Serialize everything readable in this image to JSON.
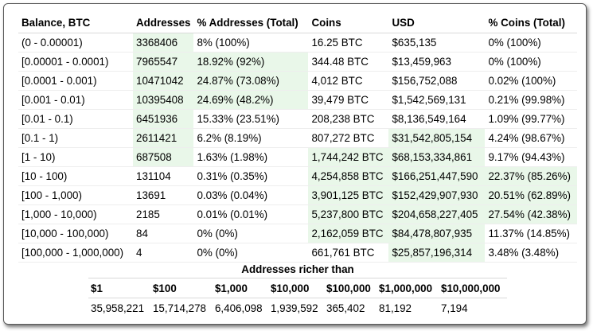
{
  "table": {
    "headers": [
      "Balance, BTC",
      "Addresses",
      "% Addresses (Total)",
      "Coins",
      "USD",
      "% Coins (Total)"
    ],
    "highlight_color": "#e9f7e9",
    "rows": [
      {
        "cells": [
          "(0 - 0.00001)",
          "3368406",
          "8% (100%)",
          "16.25 BTC",
          "$635,135",
          "0% (100%)"
        ],
        "hl": [
          false,
          true,
          false,
          false,
          false,
          false
        ]
      },
      {
        "cells": [
          "[0.00001 - 0.0001)",
          "7965547",
          "18.92% (92%)",
          "344.48 BTC",
          "$13,459,963",
          "0% (100%)"
        ],
        "hl": [
          false,
          true,
          true,
          false,
          false,
          false
        ]
      },
      {
        "cells": [
          "[0.0001 - 0.001)",
          "10471042",
          "24.87% (73.08%)",
          "4,012 BTC",
          "$156,752,088",
          "0.02% (100%)"
        ],
        "hl": [
          false,
          true,
          true,
          false,
          false,
          false
        ]
      },
      {
        "cells": [
          "[0.001 - 0.01)",
          "10395408",
          "24.69% (48.2%)",
          "39,479 BTC",
          "$1,542,569,131",
          "0.21% (99.98%)"
        ],
        "hl": [
          false,
          true,
          true,
          false,
          false,
          false
        ]
      },
      {
        "cells": [
          "[0.01 - 0.1)",
          "6451936",
          "15.33% (23.51%)",
          "208,238 BTC",
          "$8,136,549,164",
          "1.09% (99.77%)"
        ],
        "hl": [
          false,
          true,
          false,
          false,
          false,
          false
        ]
      },
      {
        "cells": [
          "[0.1 - 1)",
          "2611421",
          "6.2% (8.19%)",
          "807,272 BTC",
          "$31,542,805,154",
          "4.24% (98.67%)"
        ],
        "hl": [
          false,
          true,
          false,
          false,
          true,
          false
        ]
      },
      {
        "cells": [
          "[1 - 10)",
          "687508",
          "1.63% (1.98%)",
          "1,744,242 BTC",
          "$68,153,334,861",
          "9.17% (94.43%)"
        ],
        "hl": [
          false,
          true,
          false,
          true,
          true,
          false
        ]
      },
      {
        "cells": [
          "[10 - 100)",
          "131104",
          "0.31% (0.35%)",
          "4,254,858 BTC",
          "$166,251,447,590",
          "22.37% (85.26%)"
        ],
        "hl": [
          false,
          false,
          false,
          true,
          true,
          true
        ]
      },
      {
        "cells": [
          "[100 - 1,000)",
          "13691",
          "0.03% (0.04%)",
          "3,901,125 BTC",
          "$152,429,907,930",
          "20.51% (62.89%)"
        ],
        "hl": [
          false,
          false,
          false,
          true,
          true,
          true
        ]
      },
      {
        "cells": [
          "[1,000 - 10,000)",
          "2185",
          "0.01% (0.01%)",
          "5,237,800 BTC",
          "$204,658,227,405",
          "27.54% (42.38%)"
        ],
        "hl": [
          false,
          false,
          false,
          true,
          true,
          true
        ]
      },
      {
        "cells": [
          "[10,000 - 100,000)",
          "84",
          "0% (0%)",
          "2,162,059 BTC",
          "$84,478,807,935",
          "11.37% (14.85%)"
        ],
        "hl": [
          false,
          false,
          false,
          true,
          true,
          false
        ]
      },
      {
        "cells": [
          "[100,000 - 1,000,000)",
          "4",
          "0% (0%)",
          "661,761 BTC",
          "$25,857,196,314",
          "3.48% (3.48%)"
        ],
        "hl": [
          false,
          false,
          false,
          false,
          true,
          false
        ]
      }
    ]
  },
  "richer": {
    "title": "Addresses richer than",
    "headers": [
      "$1",
      "$100",
      "$1,000",
      "$10,000",
      "$100,000",
      "$1,000,000",
      "$10,000,000"
    ],
    "values": [
      "35,958,221",
      "15,714,278",
      "6,406,098",
      "1,939,592",
      "365,402",
      "81,192",
      "7,194"
    ]
  }
}
